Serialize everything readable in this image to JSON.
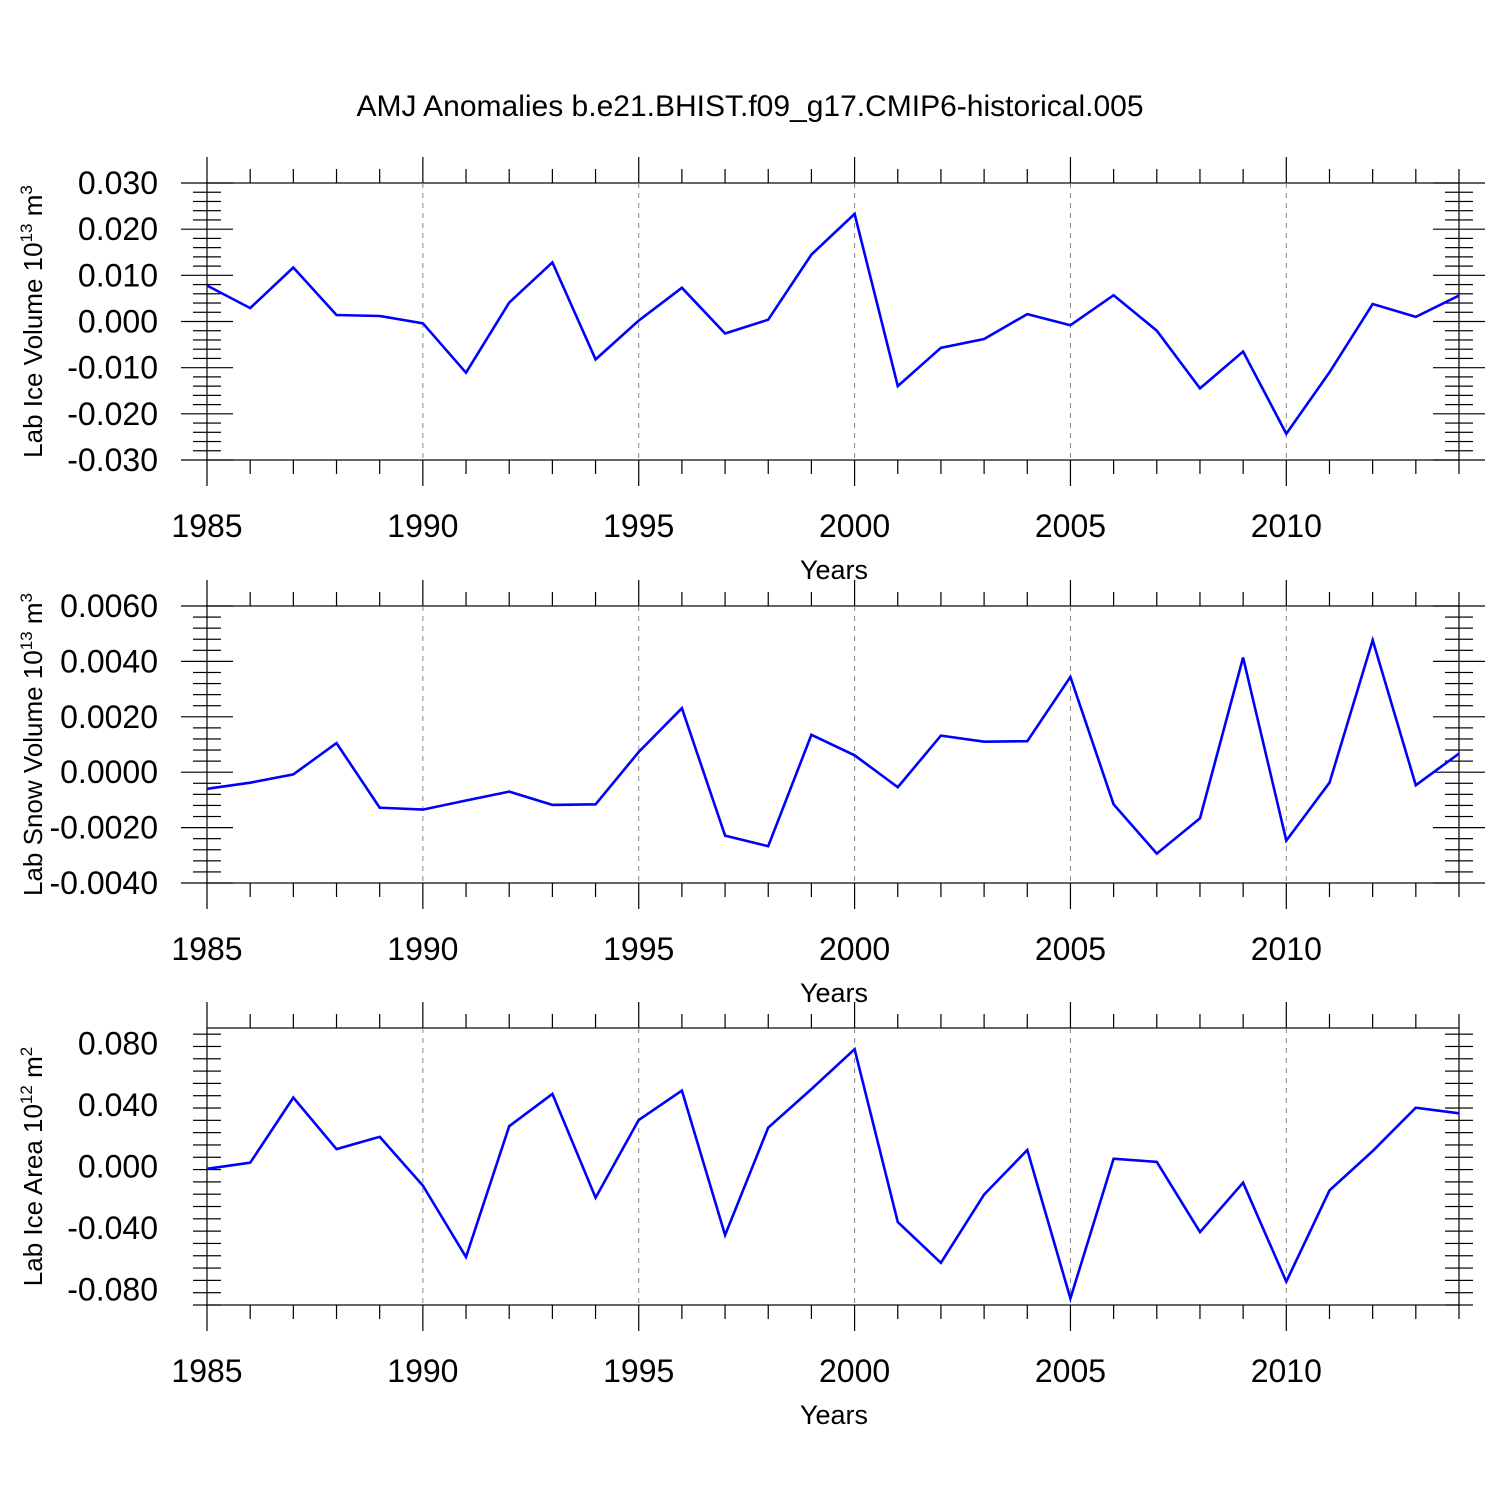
{
  "title": "AMJ Anomalies b.e21.BHIST.f09_g17.CMIP6-historical.005",
  "line_color": "#0000ff",
  "chart_data": [
    {
      "type": "line",
      "ylabel_main": "Lab Ice Volume 10",
      "ylabel_sup": "13",
      "ylabel_unit": " m",
      "ylabel_unit_sup": "3",
      "xlabel": "Years",
      "xlim": [
        1985,
        2014
      ],
      "ylim": [
        -0.03,
        0.03
      ],
      "x_ticks": [
        "1985",
        "1990",
        "1995",
        "2000",
        "2005",
        "2010"
      ],
      "y_ticks": [
        "0.030",
        "0.020",
        "0.010",
        "0.000",
        "-0.010",
        "-0.020",
        "-0.030"
      ],
      "grid": "vertical dashed at major ticks",
      "series": [
        {
          "x": [
            1985,
            1986,
            1987,
            1988,
            1989,
            1990,
            1991,
            1992,
            1993,
            1994,
            1995,
            1996,
            1997,
            1998,
            1999,
            2000,
            2001,
            2002,
            2003,
            2004,
            2005,
            2006,
            2007,
            2008,
            2009,
            2010,
            2011,
            2012,
            2013,
            2014
          ],
          "values": [
            0.0078,
            0.0029,
            0.0117,
            0.0014,
            0.0012,
            -0.0004,
            -0.0111,
            0.0041,
            0.0128,
            -0.0082,
            0.0002,
            0.0073,
            -0.0026,
            0.0004,
            0.0145,
            0.0233,
            -0.014,
            -0.0057,
            -0.0038,
            0.0016,
            -0.0008,
            0.0057,
            -0.002,
            -0.0145,
            -0.0065,
            -0.0243,
            -0.011,
            0.0038,
            0.001,
            0.0056
          ]
        }
      ]
    },
    {
      "type": "line",
      "ylabel_main": "Lab Snow Volume 10",
      "ylabel_sup": "13",
      "ylabel_unit": " m",
      "ylabel_unit_sup": "3",
      "xlabel": "Years",
      "xlim": [
        1985,
        2014
      ],
      "ylim": [
        -0.004,
        0.006
      ],
      "x_ticks": [
        "1985",
        "1990",
        "1995",
        "2000",
        "2005",
        "2010"
      ],
      "y_ticks": [
        "0.0060",
        "0.0040",
        "0.0020",
        "0.0000",
        "-0.0020",
        "-0.0040"
      ],
      "grid": "vertical dashed at major ticks",
      "series": [
        {
          "x": [
            1985,
            1986,
            1987,
            1988,
            1989,
            1990,
            1991,
            1992,
            1993,
            1994,
            1995,
            1996,
            1997,
            1998,
            1999,
            2000,
            2001,
            2002,
            2003,
            2004,
            2005,
            2006,
            2007,
            2008,
            2009,
            2010,
            2011,
            2012,
            2013,
            2014
          ],
          "values": [
            -0.0006,
            -0.00038,
            -8e-05,
            0.00105,
            -0.00128,
            -0.00135,
            -0.00102,
            -0.0007,
            -0.00118,
            -0.00116,
            0.00073,
            0.00231,
            -0.00229,
            -0.00267,
            0.00135,
            0.00061,
            -0.00054,
            0.00132,
            0.0011,
            0.00112,
            0.00344,
            -0.00116,
            -0.00294,
            -0.00166,
            0.00414,
            -0.00247,
            -0.00038,
            0.00477,
            -0.00047,
            0.00067
          ]
        }
      ]
    },
    {
      "type": "line",
      "ylabel_main": "Lab Ice Area 10",
      "ylabel_sup": "12",
      "ylabel_unit": " m",
      "ylabel_unit_sup": "2",
      "xlabel": "Years",
      "xlim": [
        1985,
        2014
      ],
      "ylim": [
        -0.09,
        0.09
      ],
      "x_ticks": [
        "1985",
        "1990",
        "1995",
        "2000",
        "2005",
        "2010"
      ],
      "y_ticks": [
        "0.080",
        "0.040",
        "0.000",
        "-0.040",
        "-0.080"
      ],
      "grid": "vertical dashed at major ticks",
      "series": [
        {
          "x": [
            1985,
            1986,
            1987,
            1988,
            1989,
            1990,
            1991,
            1992,
            1993,
            1994,
            1995,
            1996,
            1997,
            1998,
            1999,
            2000,
            2001,
            2002,
            2003,
            2004,
            2005,
            2006,
            2007,
            2008,
            2009,
            2010,
            2011,
            2012,
            2013,
            2014
          ],
          "values": [
            -0.0015,
            0.0025,
            0.0448,
            0.0113,
            0.0193,
            -0.0124,
            -0.0588,
            0.0262,
            0.0472,
            -0.0203,
            0.0302,
            0.0493,
            -0.0446,
            0.0253,
            0.0503,
            0.0762,
            -0.0361,
            -0.0626,
            -0.0182,
            0.0107,
            -0.0858,
            0.0051,
            0.003,
            -0.0426,
            -0.0105,
            -0.0748,
            -0.0155,
            0.0101,
            0.0382,
            0.0346
          ]
        }
      ]
    }
  ]
}
